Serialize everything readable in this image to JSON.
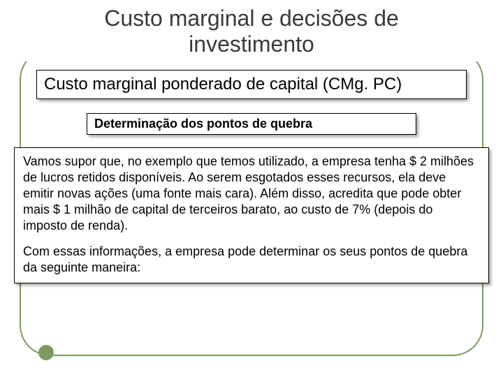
{
  "slide": {
    "title": "Custo marginal e decisões de investimento",
    "title_fontsize": 32,
    "title_color": "#3a3a3a",
    "subtitle": "Custo marginal ponderado de capital (CMg. PC)",
    "subtitle_fontsize": 24,
    "section_heading": "Determinação dos pontos de quebra",
    "section_fontsize": 18,
    "body_p1": "Vamos supor que, no exemplo que temos utilizado, a empresa tenha $ 2 milhões de lucros retidos disponíveis. Ao serem esgotados esses recursos, ela deve emitir novas ações (uma fonte mais cara). Além disso, acredita que pode obter mais $ 1 milhão de capital de terceiros barato, ao custo de 7% (depois do imposto de renda).",
    "body_p2": "Com essas informações, a empresa pode determinar os seus pontos de quebra da seguinte maneira:",
    "body_fontsize": 18
  },
  "theme": {
    "frame_color": "#7d9b60",
    "accent_dot_color": "#7d9b60",
    "box_border_color": "#000000",
    "box_background": "#ffffff",
    "body_text_color": "#000000"
  }
}
